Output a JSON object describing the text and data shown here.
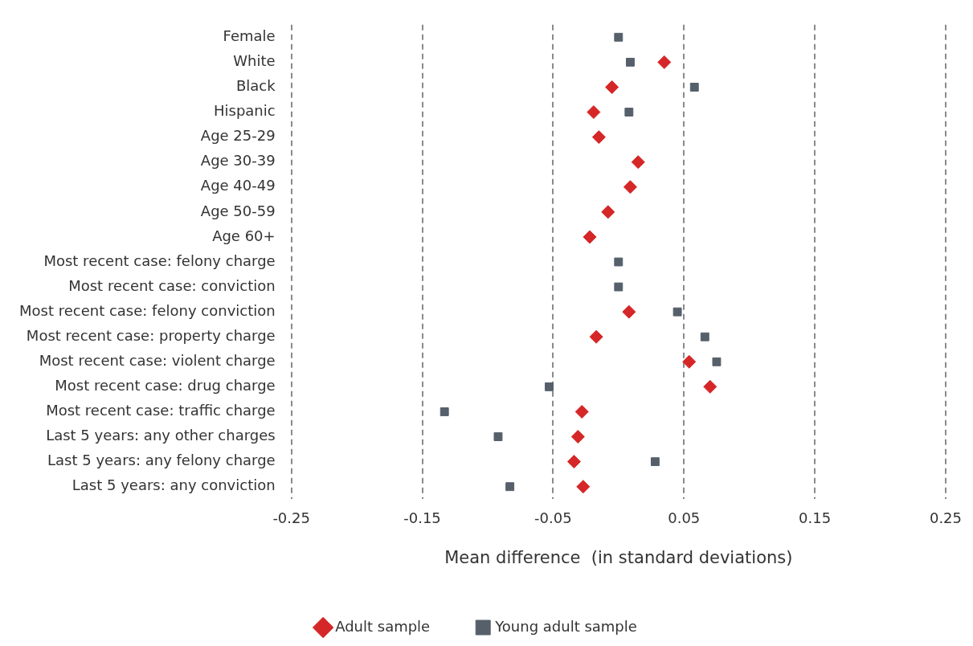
{
  "chart_data": {
    "type": "scatter",
    "orientation": "horizontal",
    "xlabel": "Mean difference  (in standard deviations)",
    "categories": [
      "Female",
      "White",
      "Black",
      "Hispanic",
      "Age 25-29",
      "Age 30-39",
      "Age 40-49",
      "Age 50-59",
      "Age 60+",
      "Most recent case: felony charge",
      "Most recent case: conviction",
      "Most recent case: felony conviction",
      "Most recent case: property charge",
      "Most recent case: violent charge",
      "Most recent case: drug charge",
      "Most recent case: traffic charge",
      "Last 5 years: any other charges",
      "Last 5 years: any felony charge",
      "Last 5 years: any conviction"
    ],
    "series": [
      {
        "name": "Adult sample",
        "color": "#d62728",
        "marker": "diamond",
        "values": [
          null,
          0.035,
          -0.005,
          -0.019,
          -0.015,
          0.015,
          0.009,
          -0.008,
          -0.022,
          null,
          null,
          0.008,
          -0.017,
          0.054,
          0.07,
          -0.028,
          -0.031,
          -0.034,
          -0.027
        ]
      },
      {
        "name": "Young adult sample",
        "color": "#56606b",
        "marker": "square",
        "values": [
          0.0,
          0.009,
          0.058,
          0.008,
          null,
          null,
          null,
          null,
          null,
          0.0,
          0.0,
          0.045,
          0.066,
          0.075,
          -0.053,
          -0.133,
          -0.092,
          0.028,
          -0.083
        ]
      }
    ],
    "xlim": [
      -0.25,
      0.25
    ],
    "xticks": [
      -0.25,
      -0.15,
      -0.05,
      0.05,
      0.15,
      0.25
    ],
    "grid": "x",
    "line_style": "dashed",
    "legend": "bottom"
  }
}
